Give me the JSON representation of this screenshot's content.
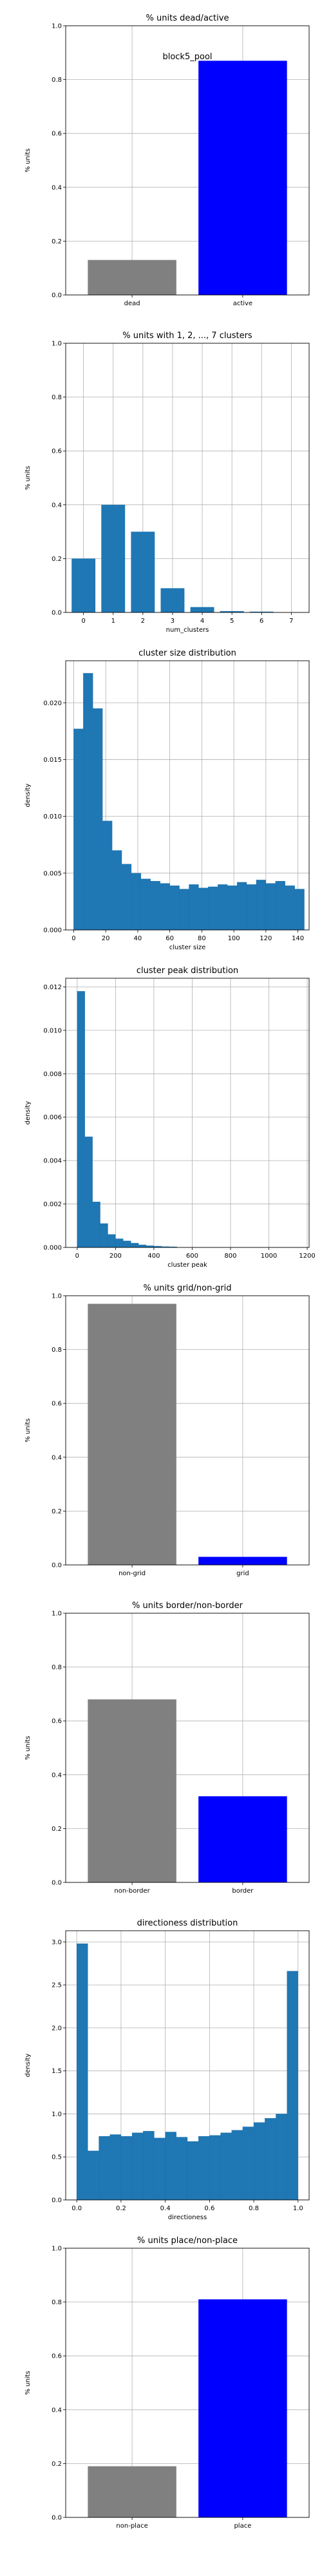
{
  "chart_data": [
    {
      "type": "bar",
      "title": "% units dead/active",
      "annotation": "block5_pool",
      "categories": [
        "dead",
        "active"
      ],
      "values": [
        0.13,
        0.87
      ],
      "bar_colors": [
        "#808080",
        "#0000ff"
      ],
      "xlabel": "",
      "ylabel": "% units",
      "ylim": [
        0,
        1.0
      ],
      "yticks": [
        "0.0",
        "0.2",
        "0.4",
        "0.6",
        "0.8",
        "1.0"
      ],
      "grid": true
    },
    {
      "type": "bar",
      "title": "% units with 1, 2, ..., 7 clusters",
      "categories": [
        "0",
        "1",
        "2",
        "3",
        "4",
        "5",
        "6",
        "7"
      ],
      "values": [
        0.2,
        0.4,
        0.3,
        0.09,
        0.02,
        0.005,
        0.003,
        0
      ],
      "bar_colors": [
        "#1f77b4"
      ],
      "xlabel": "num_clusters",
      "ylabel": "% units",
      "ylim": [
        0,
        1.0
      ],
      "yticks": [
        "0.0",
        "0.2",
        "0.4",
        "0.6",
        "0.8",
        "1.0"
      ],
      "grid": true
    },
    {
      "type": "bar",
      "subtype": "histogram",
      "title": "cluster size distribution",
      "bin_edges": [
        0,
        6,
        12,
        18,
        24,
        30,
        36,
        42,
        48,
        54,
        60,
        66,
        72,
        78,
        84,
        90,
        96,
        102,
        108,
        114,
        120,
        126,
        132,
        138,
        144
      ],
      "values": [
        0.0177,
        0.0226,
        0.0195,
        0.0096,
        0.007,
        0.0058,
        0.005,
        0.0045,
        0.0043,
        0.0041,
        0.0039,
        0.0036,
        0.004,
        0.0037,
        0.0038,
        0.004,
        0.0039,
        0.0042,
        0.004,
        0.0044,
        0.0041,
        0.0043,
        0.0039,
        0.0036
      ],
      "bar_colors": [
        "#1f77b4"
      ],
      "xlabel": "cluster size",
      "ylabel": "density",
      "xlim": [
        -5,
        147
      ],
      "xticks": [
        "0",
        "20",
        "40",
        "60",
        "80",
        "100",
        "120",
        "140"
      ],
      "ylim": [
        0,
        0.0237
      ],
      "yticks": [
        "0.000",
        "0.005",
        "0.010",
        "0.015",
        "0.020"
      ],
      "grid": true
    },
    {
      "type": "bar",
      "subtype": "histogram",
      "title": "cluster peak distribution",
      "bin_edges": [
        0,
        40,
        80,
        120,
        160,
        200,
        240,
        280,
        320,
        360,
        400,
        440,
        480,
        520
      ],
      "values": [
        0.0118,
        0.0051,
        0.0021,
        0.0011,
        0.0006,
        0.0004,
        0.0003,
        0.0002,
        0.00012,
        8e-05,
        6e-05,
        4e-05,
        3e-05
      ],
      "bar_colors": [
        "#1f77b4"
      ],
      "xlabel": "cluster peak",
      "ylabel": "density",
      "xlim": [
        -60,
        1210
      ],
      "xticks": [
        "0",
        "200",
        "400",
        "600",
        "800",
        "1000",
        "1200"
      ],
      "ylim": [
        0,
        0.0124
      ],
      "yticks": [
        "0.000",
        "0.002",
        "0.004",
        "0.006",
        "0.008",
        "0.010",
        "0.012"
      ],
      "grid": true
    },
    {
      "type": "bar",
      "title": "% units grid/non-grid",
      "categories": [
        "non-grid",
        "grid"
      ],
      "values": [
        0.97,
        0.03
      ],
      "bar_colors": [
        "#808080",
        "#0000ff"
      ],
      "xlabel": "",
      "ylabel": "% units",
      "ylim": [
        0,
        1.0
      ],
      "yticks": [
        "0.0",
        "0.2",
        "0.4",
        "0.6",
        "0.8",
        "1.0"
      ],
      "grid": true
    },
    {
      "type": "bar",
      "title": "% units border/non-border",
      "categories": [
        "non-border",
        "border"
      ],
      "values": [
        0.68,
        0.32
      ],
      "bar_colors": [
        "#808080",
        "#0000ff"
      ],
      "xlabel": "",
      "ylabel": "% units",
      "ylim": [
        0,
        1.0
      ],
      "yticks": [
        "0.0",
        "0.2",
        "0.4",
        "0.6",
        "0.8",
        "1.0"
      ],
      "grid": true
    },
    {
      "type": "bar",
      "subtype": "histogram",
      "title": "directioness distribution",
      "bin_edges": [
        0,
        0.05,
        0.1,
        0.15,
        0.2,
        0.25,
        0.3,
        0.35,
        0.4,
        0.45,
        0.5,
        0.55,
        0.6,
        0.65,
        0.7,
        0.75,
        0.8,
        0.85,
        0.9,
        0.95,
        1.0
      ],
      "values": [
        2.98,
        0.57,
        0.74,
        0.76,
        0.74,
        0.78,
        0.8,
        0.72,
        0.79,
        0.73,
        0.68,
        0.74,
        0.75,
        0.78,
        0.81,
        0.85,
        0.9,
        0.95,
        1.0,
        2.66
      ],
      "bar_colors": [
        "#1f77b4"
      ],
      "xlabel": "directioness",
      "ylabel": "density",
      "xlim": [
        -0.05,
        1.05
      ],
      "xticks": [
        "0.0",
        "0.2",
        "0.4",
        "0.6",
        "0.8",
        "1.0"
      ],
      "ylim": [
        0,
        3.13
      ],
      "yticks": [
        "0.0",
        "0.5",
        "1.0",
        "1.5",
        "2.0",
        "2.5",
        "3.0"
      ],
      "grid": true
    },
    {
      "type": "bar",
      "title": "% units place/non-place",
      "categories": [
        "non-place",
        "place"
      ],
      "values": [
        0.19,
        0.81
      ],
      "bar_colors": [
        "#808080",
        "#0000ff"
      ],
      "xlabel": "",
      "ylabel": "% units",
      "ylim": [
        0,
        1.0
      ],
      "yticks": [
        "0.0",
        "0.2",
        "0.4",
        "0.6",
        "0.8",
        "1.0"
      ],
      "grid": true
    }
  ]
}
